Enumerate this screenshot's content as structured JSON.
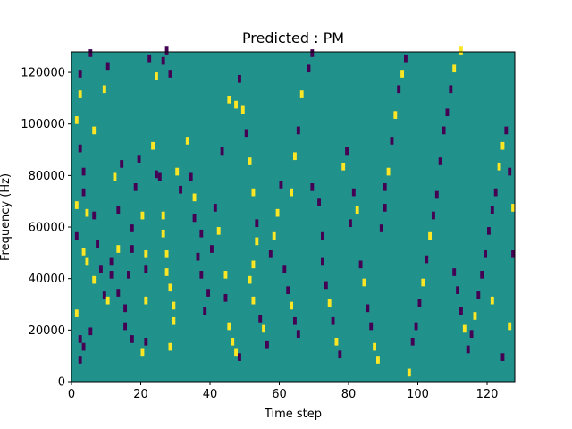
{
  "chart_data": {
    "type": "heatmap",
    "title": "Predicted : PM",
    "xlabel": "Time step",
    "ylabel": "Frequency (Hz)",
    "xlim": [
      0,
      128
    ],
    "ylim": [
      0,
      128000
    ],
    "x_ticks": [
      0,
      20,
      40,
      60,
      80,
      100,
      120
    ],
    "y_ticks": [
      0,
      20000,
      40000,
      60000,
      80000,
      100000,
      120000
    ],
    "x_tick_labels": [
      "0",
      "20",
      "40",
      "60",
      "80",
      "100",
      "120"
    ],
    "y_tick_labels": [
      "0",
      "20000",
      "40000",
      "60000",
      "80000",
      "100000",
      "120000"
    ],
    "grid": false,
    "legend": "none",
    "colormap": "viridis",
    "colors": {
      "background": "#21918c",
      "low": "#440154",
      "high": "#fde725"
    },
    "levels": {
      "background": 0,
      "low": -1,
      "high": 1
    },
    "cell": {
      "width_steps": 1,
      "height_hz": 3000
    },
    "background_level": 0,
    "cells": [
      [
        2,
        118000,
        -1
      ],
      [
        2,
        89000,
        -1
      ],
      [
        1,
        100000,
        1
      ],
      [
        2,
        110000,
        1
      ],
      [
        3,
        80000,
        -1
      ],
      [
        3,
        72000,
        -1
      ],
      [
        1,
        67000,
        1
      ],
      [
        4,
        64000,
        1
      ],
      [
        1,
        55000,
        -1
      ],
      [
        3,
        49000,
        1
      ],
      [
        4,
        45000,
        1
      ],
      [
        6,
        38000,
        1
      ],
      [
        1,
        25000,
        1
      ],
      [
        2,
        15000,
        -1
      ],
      [
        3,
        12000,
        -1
      ],
      [
        5,
        18000,
        -1
      ],
      [
        2,
        7000,
        -1
      ],
      [
        5,
        126000,
        -1
      ],
      [
        6,
        96000,
        1
      ],
      [
        6,
        63000,
        -1
      ],
      [
        7,
        52000,
        -1
      ],
      [
        8,
        42000,
        -1
      ],
      [
        9,
        32000,
        -1
      ],
      [
        10,
        30000,
        1
      ],
      [
        9,
        112000,
        1
      ],
      [
        10,
        121000,
        -1
      ],
      [
        12,
        78000,
        1
      ],
      [
        14,
        83000,
        -1
      ],
      [
        13,
        65000,
        -1
      ],
      [
        13,
        50000,
        1
      ],
      [
        11,
        45000,
        -1
      ],
      [
        11,
        40000,
        -1
      ],
      [
        13,
        33000,
        -1
      ],
      [
        15,
        27000,
        -1
      ],
      [
        15,
        20000,
        -1
      ],
      [
        16,
        40000,
        -1
      ],
      [
        17,
        58000,
        -1
      ],
      [
        17,
        50000,
        -1
      ],
      [
        17,
        15000,
        -1
      ],
      [
        18,
        74000,
        -1
      ],
      [
        19,
        85000,
        -1
      ],
      [
        20,
        63000,
        1
      ],
      [
        21,
        48000,
        1
      ],
      [
        21,
        42000,
        -1
      ],
      [
        21,
        30000,
        1
      ],
      [
        21,
        14000,
        -1
      ],
      [
        20,
        10000,
        1
      ],
      [
        22,
        124000,
        -1
      ],
      [
        24,
        117000,
        1
      ],
      [
        26,
        123000,
        -1
      ],
      [
        27,
        127000,
        -1
      ],
      [
        28,
        118000,
        -1
      ],
      [
        23,
        90000,
        1
      ],
      [
        24,
        79000,
        -1
      ],
      [
        25,
        78000,
        -1
      ],
      [
        26,
        63000,
        1
      ],
      [
        26,
        56000,
        1
      ],
      [
        27,
        48000,
        1
      ],
      [
        27,
        41000,
        1
      ],
      [
        28,
        35000,
        1
      ],
      [
        29,
        28000,
        1
      ],
      [
        29,
        22000,
        1
      ],
      [
        28,
        12000,
        1
      ],
      [
        30,
        80000,
        1
      ],
      [
        31,
        73000,
        -1
      ],
      [
        33,
        92000,
        1
      ],
      [
        34,
        78000,
        -1
      ],
      [
        35,
        70000,
        1
      ],
      [
        35,
        62000,
        -1
      ],
      [
        37,
        56000,
        -1
      ],
      [
        36,
        47000,
        -1
      ],
      [
        37,
        40000,
        -1
      ],
      [
        38,
        26000,
        -1
      ],
      [
        39,
        33000,
        -1
      ],
      [
        40,
        50000,
        -1
      ],
      [
        41,
        66000,
        -1
      ],
      [
        42,
        57000,
        1
      ],
      [
        43,
        88000,
        -1
      ],
      [
        44,
        40000,
        1
      ],
      [
        44,
        31000,
        -1
      ],
      [
        45,
        20000,
        1
      ],
      [
        46,
        14000,
        1
      ],
      [
        47,
        10000,
        1
      ],
      [
        48,
        8000,
        -1
      ],
      [
        45,
        108000,
        1
      ],
      [
        47,
        106000,
        1
      ],
      [
        48,
        116000,
        -1
      ],
      [
        49,
        104000,
        1
      ],
      [
        50,
        95000,
        -1
      ],
      [
        51,
        84000,
        1
      ],
      [
        52,
        72000,
        1
      ],
      [
        53,
        60000,
        -1
      ],
      [
        53,
        53000,
        1
      ],
      [
        52,
        44000,
        1
      ],
      [
        51,
        38000,
        1
      ],
      [
        52,
        30000,
        1
      ],
      [
        54,
        23000,
        -1
      ],
      [
        55,
        19000,
        1
      ],
      [
        56,
        13000,
        -1
      ],
      [
        57,
        48000,
        -1
      ],
      [
        58,
        55000,
        1
      ],
      [
        59,
        64000,
        1
      ],
      [
        60,
        75000,
        -1
      ],
      [
        61,
        42000,
        -1
      ],
      [
        62,
        34000,
        -1
      ],
      [
        63,
        28000,
        1
      ],
      [
        64,
        22000,
        -1
      ],
      [
        65,
        17000,
        -1
      ],
      [
        63,
        72000,
        1
      ],
      [
        64,
        86000,
        1
      ],
      [
        65,
        96000,
        -1
      ],
      [
        66,
        110000,
        1
      ],
      [
        68,
        120000,
        -1
      ],
      [
        69,
        126000,
        -1
      ],
      [
        69,
        74000,
        -1
      ],
      [
        71,
        68000,
        -1
      ],
      [
        72,
        55000,
        -1
      ],
      [
        72,
        45000,
        -1
      ],
      [
        73,
        36000,
        -1
      ],
      [
        74,
        29000,
        1
      ],
      [
        75,
        22000,
        -1
      ],
      [
        76,
        14000,
        1
      ],
      [
        77,
        9000,
        -1
      ],
      [
        78,
        82000,
        1
      ],
      [
        79,
        88000,
        -1
      ],
      [
        80,
        60000,
        -1
      ],
      [
        81,
        72000,
        -1
      ],
      [
        82,
        65000,
        1
      ],
      [
        83,
        44000,
        -1
      ],
      [
        84,
        37000,
        1
      ],
      [
        85,
        27000,
        -1
      ],
      [
        86,
        20000,
        -1
      ],
      [
        87,
        12000,
        1
      ],
      [
        88,
        7000,
        1
      ],
      [
        89,
        58000,
        -1
      ],
      [
        90,
        66000,
        -1
      ],
      [
        90,
        74000,
        -1
      ],
      [
        91,
        80000,
        1
      ],
      [
        92,
        92000,
        -1
      ],
      [
        93,
        102000,
        1
      ],
      [
        94,
        112000,
        -1
      ],
      [
        95,
        118000,
        1
      ],
      [
        96,
        124000,
        -1
      ],
      [
        97,
        2000,
        1
      ],
      [
        98,
        14000,
        -1
      ],
      [
        99,
        20000,
        -1
      ],
      [
        100,
        29000,
        -1
      ],
      [
        101,
        37000,
        1
      ],
      [
        102,
        46000,
        -1
      ],
      [
        103,
        55000,
        1
      ],
      [
        104,
        63000,
        -1
      ],
      [
        105,
        71000,
        -1
      ],
      [
        106,
        84000,
        -1
      ],
      [
        107,
        96000,
        -1
      ],
      [
        108,
        103000,
        -1
      ],
      [
        109,
        112000,
        -1
      ],
      [
        110,
        120000,
        1
      ],
      [
        112,
        127000,
        1
      ],
      [
        110,
        41000,
        -1
      ],
      [
        111,
        34000,
        -1
      ],
      [
        112,
        26000,
        -1
      ],
      [
        113,
        19000,
        1
      ],
      [
        114,
        11000,
        -1
      ],
      [
        115,
        17000,
        -1
      ],
      [
        116,
        24000,
        1
      ],
      [
        117,
        32000,
        -1
      ],
      [
        118,
        40000,
        -1
      ],
      [
        119,
        48000,
        -1
      ],
      [
        120,
        57000,
        -1
      ],
      [
        121,
        65000,
        -1
      ],
      [
        122,
        72000,
        -1
      ],
      [
        123,
        82000,
        1
      ],
      [
        124,
        90000,
        1
      ],
      [
        125,
        96000,
        -1
      ],
      [
        126,
        80000,
        -1
      ],
      [
        127,
        66000,
        1
      ],
      [
        127,
        48000,
        -1
      ],
      [
        126,
        20000,
        1
      ],
      [
        124,
        8000,
        -1
      ],
      [
        121,
        30000,
        1
      ]
    ]
  }
}
